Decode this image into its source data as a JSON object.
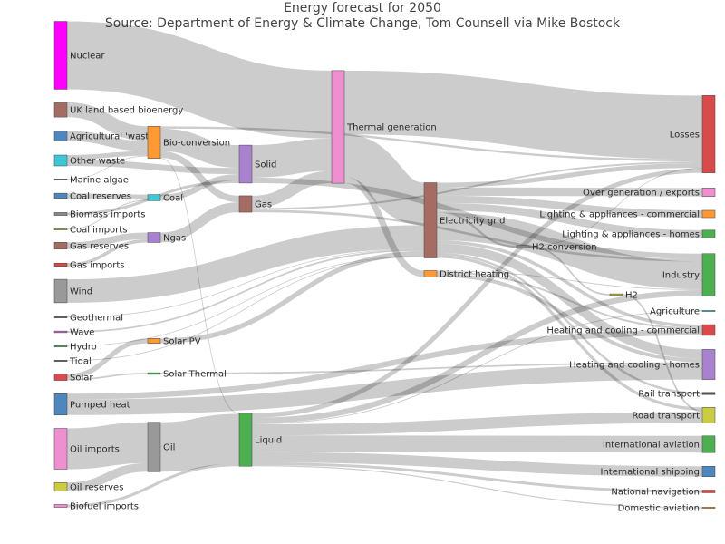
{
  "chart_data": {
    "type": "sankey",
    "title": "Energy forecast for 2050",
    "subtitle": "Source: Department of Energy & Climate Change, Tom Counsell via Mike Bostock",
    "nodes": [
      {
        "id": "nuclear",
        "label": "Nuclear",
        "color": "#ff00ff"
      },
      {
        "id": "uk_land_bio",
        "label": "UK land based bioenergy",
        "color": "#a46c62"
      },
      {
        "id": "agri_waste",
        "label": "Agricultural 'waste'",
        "color": "#4e87bd"
      },
      {
        "id": "other_waste",
        "label": "Other waste",
        "color": "#3ec7d6"
      },
      {
        "id": "marine_algae",
        "label": "Marine algae",
        "color": "#555555"
      },
      {
        "id": "coal_reserves",
        "label": "Coal reserves",
        "color": "#4e87bd"
      },
      {
        "id": "biomass_imports",
        "label": "Biomass imports",
        "color": "#888888"
      },
      {
        "id": "coal_imports",
        "label": "Coal imports",
        "color": "#bbbb33"
      },
      {
        "id": "gas_reserves",
        "label": "Gas reserves",
        "color": "#a46c62"
      },
      {
        "id": "gas_imports",
        "label": "Gas imports",
        "color": "#d94a4a"
      },
      {
        "id": "wind",
        "label": "Wind",
        "color": "#999999"
      },
      {
        "id": "geothermal",
        "label": "Geothermal",
        "color": "#555555"
      },
      {
        "id": "wave",
        "label": "Wave",
        "color": "#cc66cc"
      },
      {
        "id": "hydro",
        "label": "Hydro",
        "color": "#4caf50"
      },
      {
        "id": "tidal",
        "label": "Tidal",
        "color": "#555555"
      },
      {
        "id": "solar",
        "label": "Solar",
        "color": "#d94a4a"
      },
      {
        "id": "pumped_heat",
        "label": "Pumped heat",
        "color": "#4e87bd"
      },
      {
        "id": "oil_imports",
        "label": "Oil imports",
        "color": "#ee8fd0"
      },
      {
        "id": "oil_reserves",
        "label": "Oil reserves",
        "color": "#cccc44"
      },
      {
        "id": "biofuel_imports",
        "label": "Biofuel imports",
        "color": "#ee8fd0"
      },
      {
        "id": "bio_conversion",
        "label": "Bio-conversion",
        "color": "#ff9933"
      },
      {
        "id": "coal",
        "label": "Coal",
        "color": "#3ec7d6"
      },
      {
        "id": "ngas",
        "label": "Ngas",
        "color": "#a982cf"
      },
      {
        "id": "solar_pv",
        "label": "Solar PV",
        "color": "#ff9933"
      },
      {
        "id": "solar_thermal",
        "label": "Solar Thermal",
        "color": "#4caf50"
      },
      {
        "id": "oil",
        "label": "Oil",
        "color": "#999999"
      },
      {
        "id": "solid",
        "label": "Solid",
        "color": "#a982cf"
      },
      {
        "id": "gas",
        "label": "Gas",
        "color": "#a46c62"
      },
      {
        "id": "liquid",
        "label": "Liquid",
        "color": "#4caf50"
      },
      {
        "id": "thermal_gen",
        "label": "Thermal generation",
        "color": "#ee8fd0"
      },
      {
        "id": "electricity_grid",
        "label": "Electricity grid",
        "color": "#a46c62"
      },
      {
        "id": "district_heating",
        "label": "District heating",
        "color": "#ff9933"
      },
      {
        "id": "h2_conversion",
        "label": "H2 conversion",
        "color": "#888888"
      },
      {
        "id": "h2",
        "label": "H2",
        "color": "#bbbb33"
      },
      {
        "id": "losses",
        "label": "Losses",
        "color": "#d94a4a"
      },
      {
        "id": "over_gen",
        "label": "Over generation / exports",
        "color": "#ee8fd0"
      },
      {
        "id": "light_comm",
        "label": "Lighting & appliances - commercial",
        "color": "#ff9933"
      },
      {
        "id": "light_homes",
        "label": "Lighting & appliances - homes",
        "color": "#4caf50"
      },
      {
        "id": "industry",
        "label": "Industry",
        "color": "#4caf50"
      },
      {
        "id": "agriculture",
        "label": "Agriculture",
        "color": "#3ec7d6"
      },
      {
        "id": "heat_comm",
        "label": "Heating and cooling - commercial",
        "color": "#d94a4a"
      },
      {
        "id": "heat_homes",
        "label": "Heating and cooling - homes",
        "color": "#a982cf"
      },
      {
        "id": "rail",
        "label": "Rail transport",
        "color": "#555555"
      },
      {
        "id": "road",
        "label": "Road transport",
        "color": "#cccc44"
      },
      {
        "id": "int_aviation",
        "label": "International aviation",
        "color": "#4caf50"
      },
      {
        "id": "int_shipping",
        "label": "International shipping",
        "color": "#4e87bd"
      },
      {
        "id": "nat_navigation",
        "label": "National navigation",
        "color": "#d94a4a"
      },
      {
        "id": "dom_aviation",
        "label": "Domestic aviation",
        "color": "#ff9933"
      }
    ],
    "links": [
      {
        "source": "nuclear",
        "target": "thermal_gen",
        "value": 839
      },
      {
        "source": "uk_land_bio",
        "target": "bio_conversion",
        "value": 182
      },
      {
        "source": "agri_waste",
        "target": "bio_conversion",
        "value": 124
      },
      {
        "source": "other_waste",
        "target": "bio_conversion",
        "value": 56
      },
      {
        "source": "other_waste",
        "target": "solid",
        "value": 78
      },
      {
        "source": "marine_algae",
        "target": "bio_conversion",
        "value": 4
      },
      {
        "source": "coal_reserves",
        "target": "coal",
        "value": 64
      },
      {
        "source": "biomass_imports",
        "target": "solid",
        "value": 35
      },
      {
        "source": "coal_imports",
        "target": "coal",
        "value": 11
      },
      {
        "source": "gas_reserves",
        "target": "ngas",
        "value": 82
      },
      {
        "source": "gas_imports",
        "target": "ngas",
        "value": 40
      },
      {
        "source": "wind",
        "target": "electricity_grid",
        "value": 289
      },
      {
        "source": "geothermal",
        "target": "electricity_grid",
        "value": 7
      },
      {
        "source": "wave",
        "target": "electricity_grid",
        "value": 20
      },
      {
        "source": "hydro",
        "target": "electricity_grid",
        "value": 7
      },
      {
        "source": "tidal",
        "target": "electricity_grid",
        "value": 10
      },
      {
        "source": "solar",
        "target": "solar_pv",
        "value": 60
      },
      {
        "source": "solar",
        "target": "solar_thermal",
        "value": 20
      },
      {
        "source": "pumped_heat",
        "target": "heat_homes",
        "value": 193
      },
      {
        "source": "pumped_heat",
        "target": "heat_comm",
        "value": 71
      },
      {
        "source": "oil_imports",
        "target": "oil",
        "value": 504
      },
      {
        "source": "oil_reserves",
        "target": "oil",
        "value": 107
      },
      {
        "source": "biofuel_imports",
        "target": "liquid",
        "value": 35
      },
      {
        "source": "bio_conversion",
        "target": "solid",
        "value": 280
      },
      {
        "source": "bio_conversion",
        "target": "gas",
        "value": 81
      },
      {
        "source": "bio_conversion",
        "target": "losses",
        "value": 27
      },
      {
        "source": "bio_conversion",
        "target": "liquid",
        "value": 8
      },
      {
        "source": "coal",
        "target": "solid",
        "value": 75
      },
      {
        "source": "ngas",
        "target": "gas",
        "value": 122
      },
      {
        "source": "solar_pv",
        "target": "electricity_grid",
        "value": 60
      },
      {
        "source": "solar_thermal",
        "target": "heat_homes",
        "value": 20
      },
      {
        "source": "oil",
        "target": "liquid",
        "value": 611
      },
      {
        "source": "solid",
        "target": "thermal_gen",
        "value": 400
      },
      {
        "source": "solid",
        "target": "industry",
        "value": 68
      },
      {
        "source": "gas",
        "target": "thermal_gen",
        "value": 151
      },
      {
        "source": "gas",
        "target": "industry",
        "value": 30
      },
      {
        "source": "gas",
        "target": "losses",
        "value": 22
      },
      {
        "source": "liquid",
        "target": "industry",
        "value": 70
      },
      {
        "source": "liquid",
        "target": "road",
        "value": 137
      },
      {
        "source": "liquid",
        "target": "int_aviation",
        "value": 206
      },
      {
        "source": "liquid",
        "target": "int_shipping",
        "value": 128
      },
      {
        "source": "liquid",
        "target": "nat_navigation",
        "value": 33
      },
      {
        "source": "liquid",
        "target": "dom_aviation",
        "value": 14
      },
      {
        "source": "liquid",
        "target": "agriculture",
        "value": 10
      },
      {
        "source": "liquid",
        "target": "losses",
        "value": 56
      },
      {
        "source": "thermal_gen",
        "target": "losses",
        "value": 787
      },
      {
        "source": "thermal_gen",
        "target": "electricity_grid",
        "value": 525
      },
      {
        "source": "thermal_gen",
        "target": "district_heating",
        "value": 79
      },
      {
        "source": "electricity_grid",
        "target": "over_gen",
        "value": 104
      },
      {
        "source": "electricity_grid",
        "target": "light_comm",
        "value": 90
      },
      {
        "source": "electricity_grid",
        "target": "light_homes",
        "value": 93
      },
      {
        "source": "electricity_grid",
        "target": "industry",
        "value": 342
      },
      {
        "source": "electricity_grid",
        "target": "heat_comm",
        "value": 40
      },
      {
        "source": "electricity_grid",
        "target": "heat_homes",
        "value": 113
      },
      {
        "source": "electricity_grid",
        "target": "rail",
        "value": 27
      },
      {
        "source": "electricity_grid",
        "target": "road",
        "value": 37
      },
      {
        "source": "electricity_grid",
        "target": "h2_conversion",
        "value": 27
      },
      {
        "source": "electricity_grid",
        "target": "losses",
        "value": 56
      },
      {
        "source": "district_heating",
        "target": "industry",
        "value": 10
      },
      {
        "source": "district_heating",
        "target": "heat_comm",
        "value": 22
      },
      {
        "source": "district_heating",
        "target": "heat_homes",
        "value": 46
      },
      {
        "source": "h2_conversion",
        "target": "h2",
        "value": 20
      },
      {
        "source": "h2_conversion",
        "target": "losses",
        "value": 7
      },
      {
        "source": "h2",
        "target": "road",
        "value": 20
      }
    ]
  }
}
